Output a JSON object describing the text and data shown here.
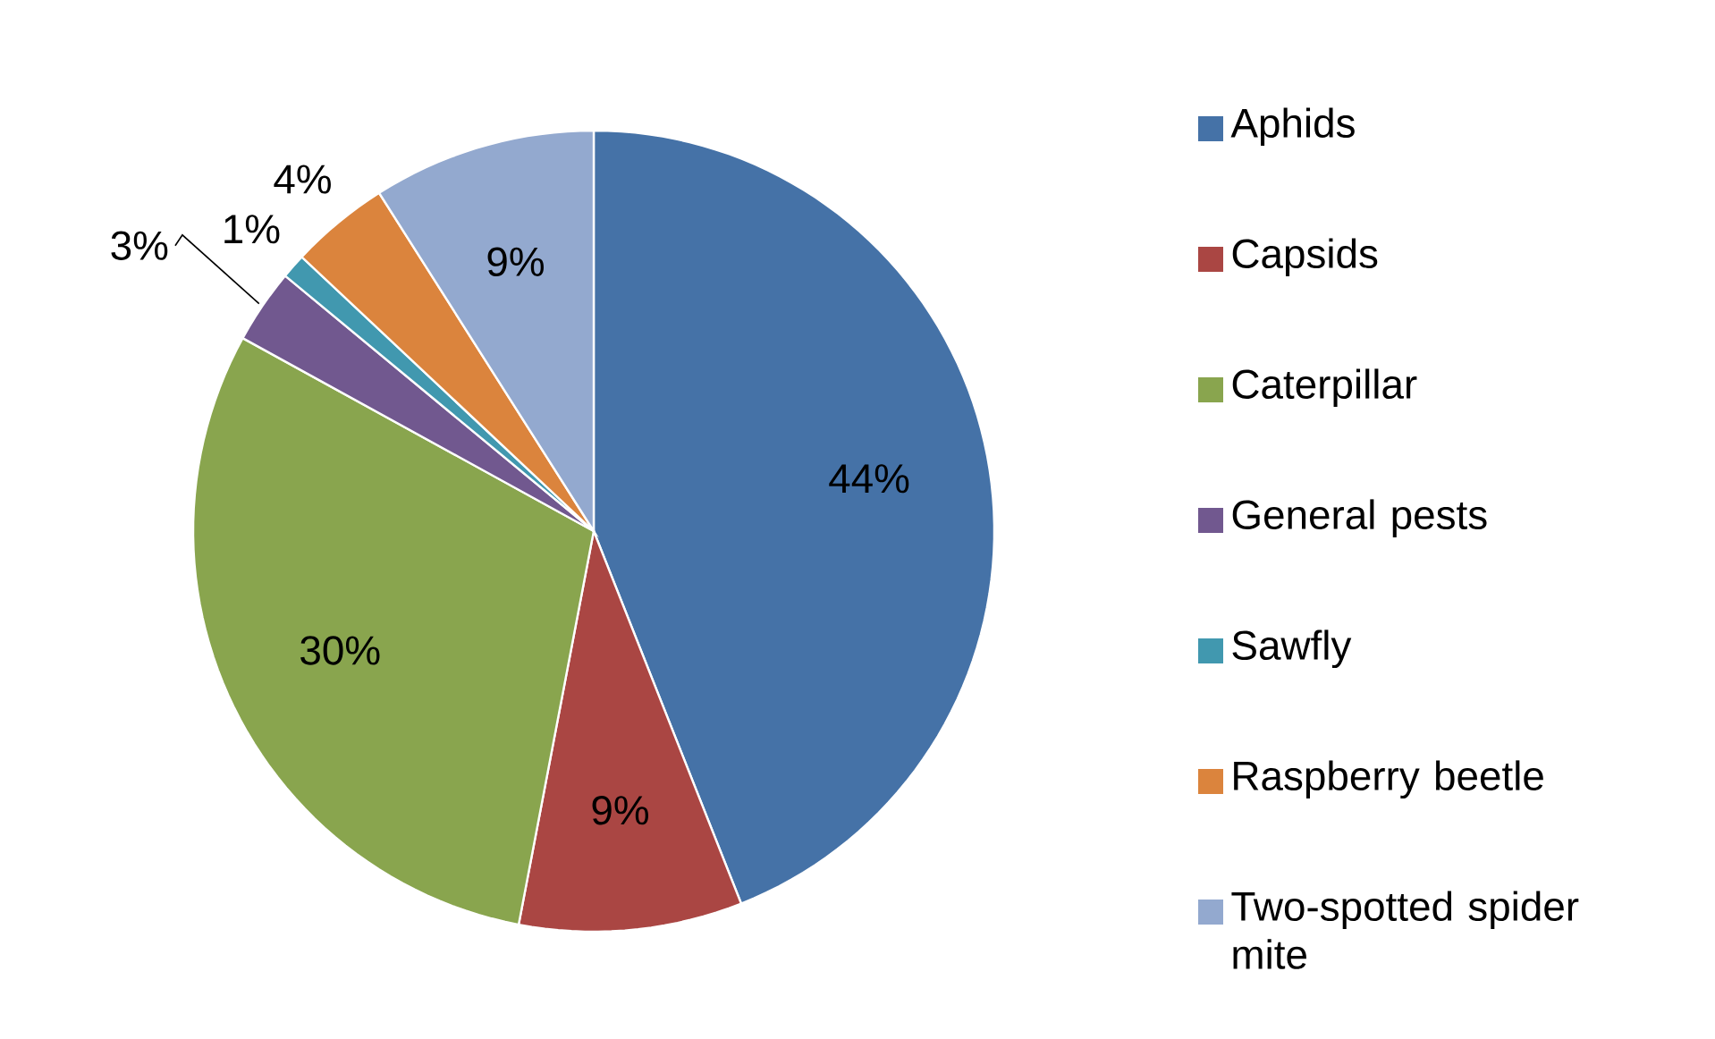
{
  "chart_data": {
    "type": "pie",
    "categories": [
      "Aphids",
      "Capsids",
      "Caterpillar",
      "General pests",
      "Sawfly",
      "Raspberry beetle",
      "Two-spotted spider mite"
    ],
    "values": [
      44,
      9,
      30,
      3,
      1,
      4,
      9
    ],
    "colors": [
      "#4572a7",
      "#aa4643",
      "#89a54e",
      "#71588f",
      "#4198af",
      "#db843d",
      "#93a9cf"
    ],
    "value_labels": [
      "44%",
      "9%",
      "30%",
      "3%",
      "1%",
      "4%",
      "9%"
    ],
    "legend": "right"
  }
}
